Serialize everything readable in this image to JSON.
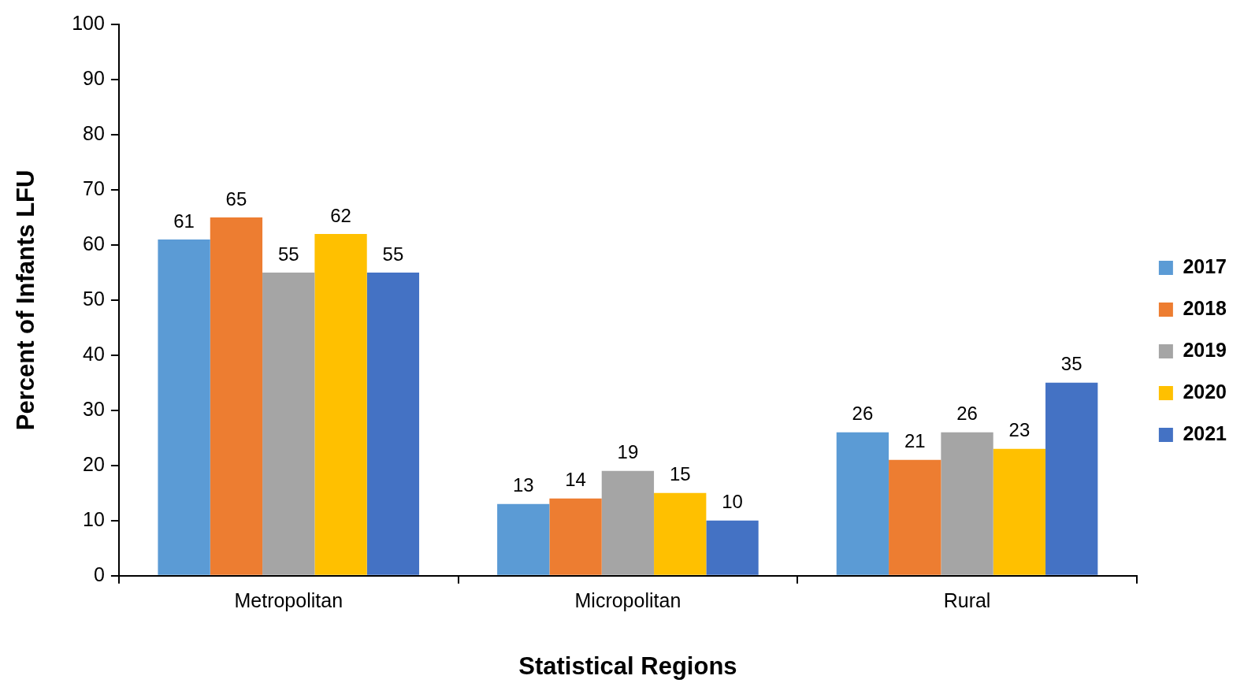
{
  "chart_data": {
    "type": "bar",
    "xlabel": "Statistical Regions",
    "ylabel": "Percent of Infants LFU",
    "categories": [
      "Metropolitan",
      "Micropolitan",
      "Rural"
    ],
    "series": [
      {
        "name": "2017",
        "color": "#5b9bd5",
        "values": [
          61,
          13,
          26
        ]
      },
      {
        "name": "2018",
        "color": "#ed7d31",
        "values": [
          65,
          14,
          21
        ]
      },
      {
        "name": "2019",
        "color": "#a5a5a5",
        "values": [
          55,
          19,
          26
        ]
      },
      {
        "name": "2020",
        "color": "#ffc000",
        "values": [
          62,
          15,
          23
        ]
      },
      {
        "name": "2021",
        "color": "#4472c4",
        "values": [
          55,
          10,
          35
        ]
      }
    ],
    "ylim": [
      0,
      100
    ],
    "yticks": [
      0,
      10,
      20,
      30,
      40,
      50,
      60,
      70,
      80,
      90,
      100
    ],
    "grid": false,
    "legend": "right",
    "data_labels": true
  }
}
